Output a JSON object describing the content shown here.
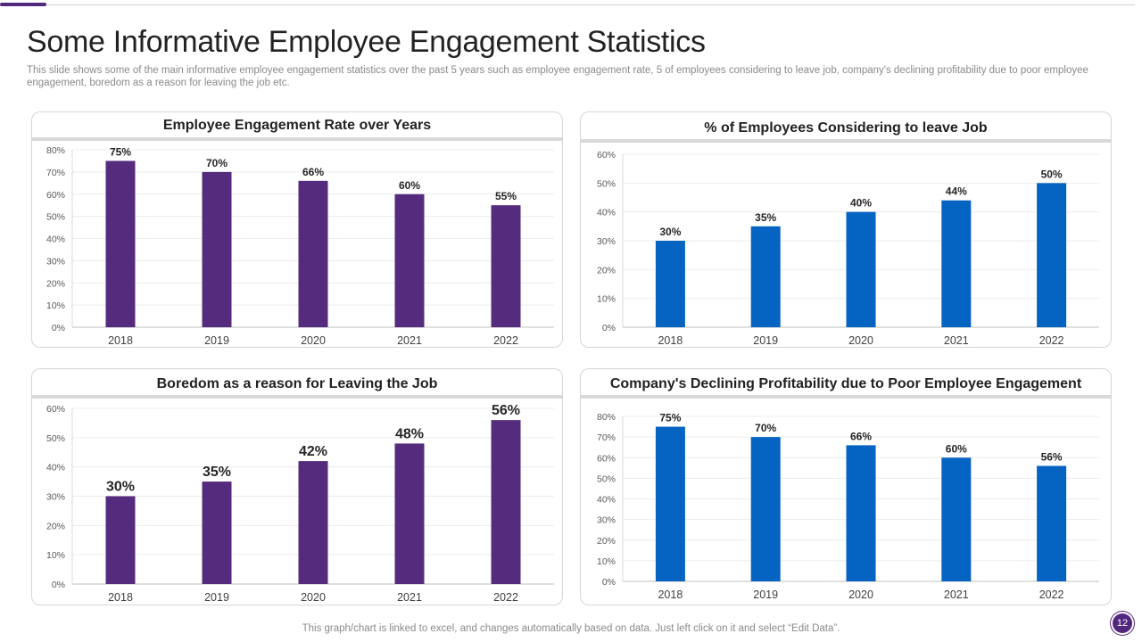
{
  "header": {
    "title": "Some Informative Employee Engagement Statistics",
    "subtitle": "This slide shows some of the main informative employee engagement statistics over the past 5 years such as employee engagement rate, 5 of employees considering to leave job, company's declining profitability due to poor employee engagement, boredom as a reason for leaving the job etc."
  },
  "footer": {
    "note": "This graph/chart is linked to excel,  and changes automatically based on data. Just left click on it and select “Edit Data”.",
    "page_number": "12"
  },
  "colors": {
    "purple": "#552b7e",
    "blue": "#0563c1",
    "accent": "#52287e"
  },
  "chart_data": [
    {
      "type": "bar",
      "title": "Employee Engagement Rate over Years",
      "categories": [
        "2018",
        "2019",
        "2020",
        "2021",
        "2022"
      ],
      "values": [
        75,
        70,
        66,
        60,
        55
      ],
      "ylim": [
        0,
        80
      ],
      "yticks": [
        0,
        10,
        20,
        30,
        40,
        50,
        60,
        70,
        80
      ],
      "value_suffix": "%",
      "color": "#552b7e",
      "xlabel": "",
      "ylabel": ""
    },
    {
      "type": "bar",
      "title": "% of Employees Considering to leave Job",
      "categories": [
        "2018",
        "2019",
        "2020",
        "2021",
        "2022"
      ],
      "values": [
        30,
        35,
        40,
        44,
        50
      ],
      "ylim": [
        0,
        60
      ],
      "yticks": [
        0,
        10,
        20,
        30,
        40,
        50,
        60
      ],
      "value_suffix": "%",
      "color": "#0563c1",
      "xlabel": "",
      "ylabel": ""
    },
    {
      "type": "bar",
      "title": "Boredom as a reason for Leaving the Job",
      "categories": [
        "2018",
        "2019",
        "2020",
        "2021",
        "2022"
      ],
      "values": [
        30,
        35,
        42,
        48,
        56
      ],
      "ylim": [
        0,
        60
      ],
      "yticks": [
        0,
        10,
        20,
        30,
        40,
        50,
        60
      ],
      "value_suffix": "%",
      "color": "#552b7e",
      "xlabel": "",
      "ylabel": ""
    },
    {
      "type": "bar",
      "title": "Company's Declining Profitability  due to Poor Employee Engagement",
      "categories": [
        "2018",
        "2019",
        "2020",
        "2021",
        "2022"
      ],
      "values": [
        75,
        70,
        66,
        60,
        56
      ],
      "ylim": [
        0,
        80
      ],
      "yticks": [
        0,
        10,
        20,
        30,
        40,
        50,
        60,
        70,
        80
      ],
      "value_suffix": "%",
      "color": "#0563c1",
      "xlabel": "",
      "ylabel": ""
    }
  ]
}
